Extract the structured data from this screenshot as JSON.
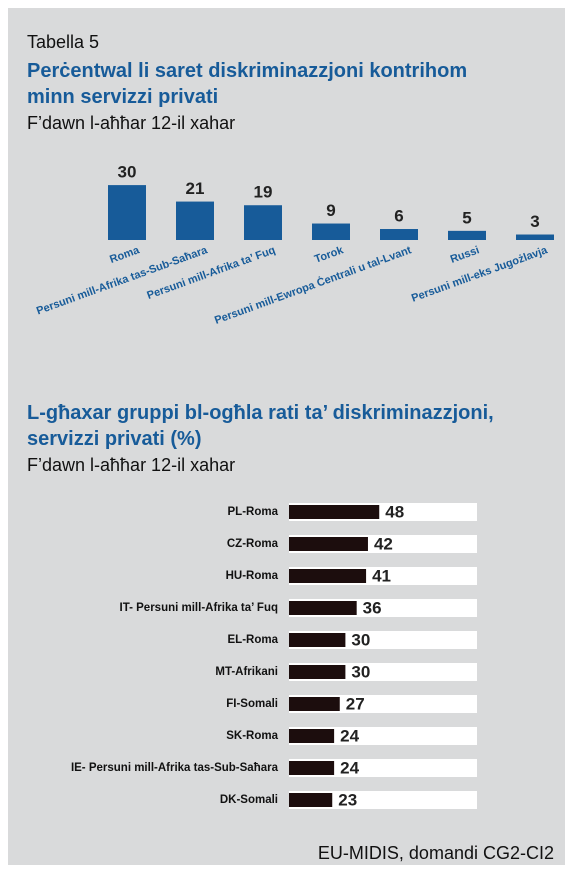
{
  "label": "Tabella 5",
  "source": "EU-MIDIS, domandi CG2-CI2",
  "chart_data": [
    {
      "type": "bar",
      "title": "Perċentwal li saret diskriminazzjoni kontrihom minn servizzi privati",
      "subtitle": "F’dawn l-aħħar 12-il xahar",
      "categories": [
        "Roma",
        "Persuni mill-Afrika tas-Sub-Saħara",
        "Persuni mill-Afrika ta’ Fuq",
        "Torok",
        "Persuni mill-Ewropa Ċentrali u tal-Lvant",
        "Russi",
        "Persuni mill-eks Jugożlavja"
      ],
      "values": [
        30,
        21,
        19,
        9,
        6,
        5,
        3
      ],
      "color": "#175b99"
    },
    {
      "type": "hbar",
      "title": "L-għaxar gruppi bl-ogħla rati ta’ diskriminazzjoni, servizzi privati (%)",
      "subtitle": "F’dawn l-aħħar 12-il xahar",
      "categories": [
        "PL-Roma",
        "CZ-Roma",
        "HU-Roma",
        "IT- Persuni mill-Afrika ta’ Fuq",
        "EL-Roma",
        "MT-Afrikani",
        "FI-Somali",
        "SK-Roma",
        "IE- Persuni mill-Afrika tas-Sub-Saħara",
        "DK-Somali"
      ],
      "values": [
        48,
        42,
        41,
        36,
        30,
        30,
        27,
        24,
        24,
        23
      ],
      "color": "#1c0d0d",
      "xlim": [
        0,
        100
      ]
    }
  ]
}
